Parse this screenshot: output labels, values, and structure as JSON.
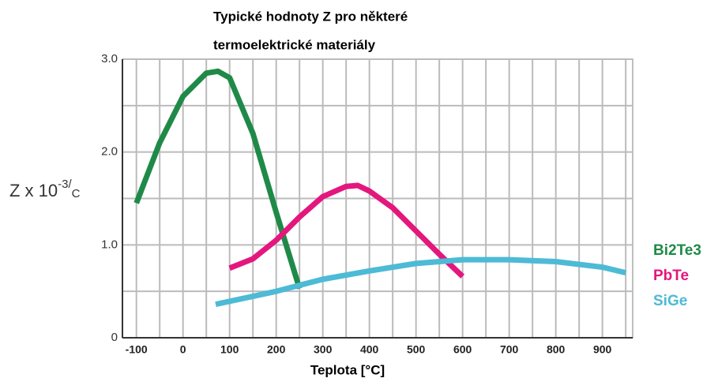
{
  "chart_data": {
    "type": "line",
    "title": [
      "Typické hodnoty Z pro některé",
      "termoelektrické materiály"
    ],
    "xlabel": "Teplota [°C]",
    "ylabel": {
      "base": "Z x 10",
      "sup": "-3/",
      "sub": "C"
    },
    "xlim": [
      -130,
      965
    ],
    "ylim": [
      0,
      3
    ],
    "xticks": [
      -100,
      0,
      100,
      200,
      300,
      400,
      500,
      600,
      700,
      800,
      900
    ],
    "xminorticks": [
      -50,
      50,
      150,
      250,
      350,
      450,
      550,
      650,
      750,
      850,
      950
    ],
    "yticks": [
      0,
      {
        "value": 1,
        "label": "1.0"
      },
      {
        "value": 2,
        "label": "2.0"
      },
      {
        "value": 3,
        "label": "3.0"
      }
    ],
    "yminorticks": [
      0.5,
      1.5,
      2.5
    ],
    "grid": true,
    "legend": "right",
    "series": [
      {
        "name": "Bi2Te3",
        "color": "#1f8a48",
        "x": [
          -100,
          -50,
          0,
          50,
          75,
          100,
          150,
          200,
          250
        ],
        "values": [
          1.45,
          2.1,
          2.6,
          2.85,
          2.87,
          2.8,
          2.2,
          1.35,
          0.53
        ]
      },
      {
        "name": "PbTe",
        "color": "#e3177e",
        "x": [
          100,
          150,
          200,
          250,
          300,
          350,
          375,
          400,
          450,
          500,
          550,
          600
        ],
        "values": [
          0.75,
          0.85,
          1.05,
          1.3,
          1.52,
          1.63,
          1.64,
          1.58,
          1.4,
          1.15,
          0.9,
          0.66
        ]
      },
      {
        "name": "SiGe",
        "color": "#4dbad6",
        "x": [
          70,
          200,
          300,
          400,
          500,
          600,
          700,
          800,
          900,
          950
        ],
        "values": [
          0.36,
          0.5,
          0.63,
          0.72,
          0.8,
          0.84,
          0.84,
          0.82,
          0.76,
          0.7
        ]
      }
    ]
  }
}
